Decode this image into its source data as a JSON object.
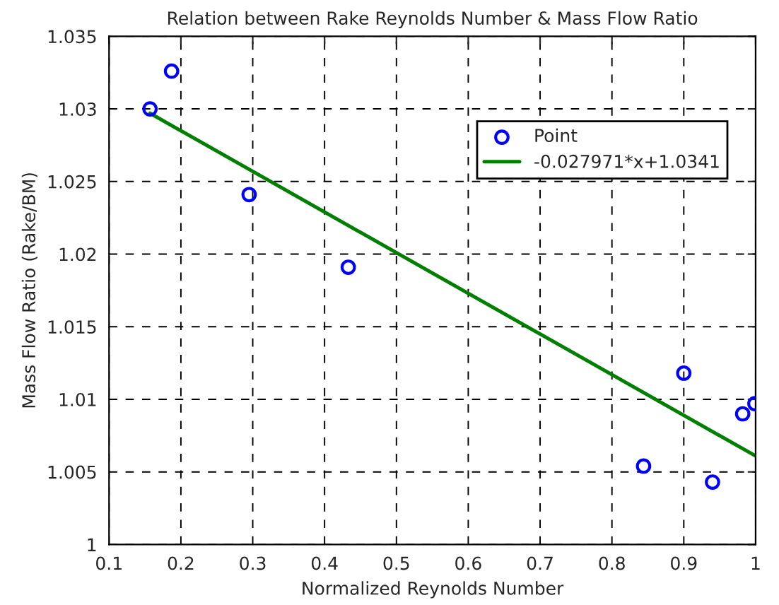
{
  "chart_data": {
    "type": "scatter",
    "title": "Relation between Rake Reynolds Number & Mass Flow Ratio",
    "xlabel": "Normalized Reynolds Number",
    "ylabel": "Mass Flow Ratio (Rake/BM)",
    "series": [
      {
        "name": "Point",
        "color": "#0000ff",
        "marker": "circle",
        "x": [
          0.157,
          0.187,
          0.295,
          0.433,
          0.844,
          0.9,
          0.94,
          0.982,
          0.999
        ],
        "values": [
          1.03,
          1.0326,
          1.0241,
          1.0191,
          1.0054,
          1.0118,
          1.0043,
          1.009,
          1.0097
        ]
      },
      {
        "name": "-0.027971*x+1.0341",
        "type": "line",
        "color": "#007f00",
        "line_style": "solid",
        "x": [
          0.157,
          1.0
        ],
        "values": [
          1.0297,
          1.0061
        ]
      }
    ],
    "xlim": [
      0.1,
      1
    ],
    "xticks": [
      0.1,
      0.2,
      0.3,
      0.4,
      0.5,
      0.6,
      0.7,
      0.8,
      0.9,
      1
    ],
    "ylim": [
      1,
      1.035
    ],
    "yticks": [
      1,
      1.005,
      1.01,
      1.015,
      1.02,
      1.025,
      1.03,
      1.035
    ],
    "grid": true,
    "legend": "top right"
  }
}
